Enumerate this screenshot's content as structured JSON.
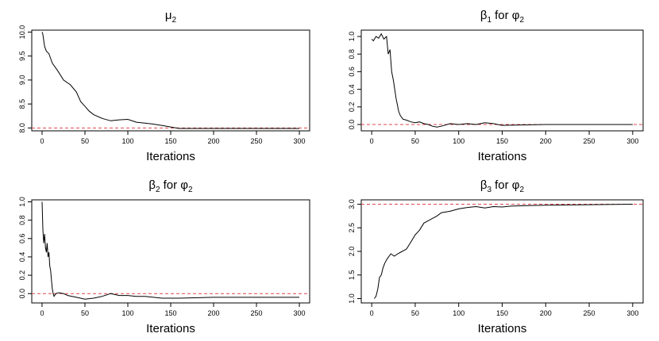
{
  "colors": {
    "trace": "#000000",
    "reference": "#e0474c",
    "axis": "#000000"
  },
  "chart_data": [
    {
      "type": "line",
      "title_main": "μ",
      "title_sub": "2",
      "title_tail": "",
      "xlabel": "Iterations",
      "xlim": [
        0,
        300
      ],
      "ylim": [
        7.98,
        10.0
      ],
      "x_ticks": [
        0,
        50,
        100,
        150,
        200,
        250,
        300
      ],
      "y_ticks": [
        8.0,
        8.5,
        9.0,
        9.5,
        10.0
      ],
      "y_tick_labels": [
        "8.0",
        "8.5",
        "9.0",
        "9.5",
        "10.0"
      ],
      "reference_line": 8.0,
      "series": [
        {
          "x": [
            0,
            1,
            3,
            5,
            8,
            12,
            18,
            25,
            33,
            40,
            45,
            50,
            55,
            60,
            70,
            80,
            90,
            100,
            110,
            120,
            130,
            140,
            150,
            160,
            180,
            200,
            250,
            300
          ],
          "y": [
            10.0,
            9.95,
            9.7,
            9.6,
            9.55,
            9.35,
            9.2,
            9.0,
            8.9,
            8.75,
            8.55,
            8.45,
            8.35,
            8.28,
            8.2,
            8.15,
            8.17,
            8.18,
            8.12,
            8.1,
            8.08,
            8.05,
            8.02,
            7.99,
            7.99,
            7.99,
            7.99,
            7.99
          ]
        }
      ]
    },
    {
      "type": "line",
      "title_main": "β",
      "title_sub": "1",
      "title_tail": "for φ",
      "title_tail_sub": "2",
      "xlabel": "Iterations",
      "xlim": [
        0,
        300
      ],
      "ylim": [
        -0.05,
        1.05
      ],
      "x_ticks": [
        0,
        50,
        100,
        150,
        200,
        250,
        300
      ],
      "y_ticks": [
        0.0,
        0.2,
        0.4,
        0.6,
        0.8,
        1.0
      ],
      "y_tick_labels": [
        "0.0",
        "0.2",
        "0.4",
        "0.6",
        "0.8",
        "1.0"
      ],
      "reference_line": 0.0,
      "series": [
        {
          "x": [
            0,
            2,
            5,
            8,
            11,
            14,
            17,
            19,
            21,
            23,
            25,
            28,
            31,
            33,
            36,
            40,
            45,
            50,
            55,
            60,
            65,
            70,
            75,
            80,
            90,
            100,
            110,
            120,
            130,
            140,
            150,
            200,
            250,
            300
          ],
          "y": [
            0.97,
            0.95,
            1.0,
            0.98,
            1.03,
            0.97,
            1.0,
            0.8,
            0.85,
            0.6,
            0.5,
            0.3,
            0.15,
            0.1,
            0.06,
            0.05,
            0.03,
            0.02,
            0.03,
            0.01,
            0.0,
            -0.02,
            -0.03,
            -0.02,
            0.01,
            0.0,
            0.01,
            0.0,
            0.02,
            0.01,
            -0.01,
            0.0,
            0.0,
            0.0
          ]
        }
      ]
    },
    {
      "type": "line",
      "title_main": "β",
      "title_sub": "2",
      "title_tail": "for φ",
      "title_tail_sub": "2",
      "xlabel": "Iterations",
      "xlim": [
        0,
        300
      ],
      "ylim": [
        -0.08,
        1.0
      ],
      "x_ticks": [
        0,
        50,
        100,
        150,
        200,
        250,
        300
      ],
      "y_ticks": [
        0.0,
        0.2,
        0.4,
        0.6,
        0.8,
        1.0
      ],
      "y_tick_labels": [
        "0.0",
        "0.2",
        "0.4",
        "0.6",
        "0.8",
        "1.0"
      ],
      "reference_line": 0.0,
      "series": [
        {
          "x": [
            0,
            1,
            2,
            3,
            4,
            5,
            6,
            7,
            8,
            9,
            10,
            11,
            12,
            13,
            14,
            16,
            20,
            25,
            30,
            40,
            50,
            60,
            70,
            80,
            90,
            100,
            110,
            120,
            130,
            140,
            150,
            160,
            200,
            250,
            300
          ],
          "y": [
            1.0,
            0.7,
            0.55,
            0.65,
            0.5,
            0.45,
            0.55,
            0.4,
            0.45,
            0.3,
            0.25,
            0.15,
            0.05,
            0.0,
            -0.03,
            0.0,
            0.01,
            0.0,
            -0.02,
            -0.04,
            -0.06,
            -0.05,
            -0.03,
            0.0,
            -0.02,
            -0.02,
            -0.03,
            -0.03,
            -0.04,
            -0.05,
            -0.05,
            -0.05,
            -0.04,
            -0.04,
            -0.04
          ]
        }
      ]
    },
    {
      "type": "line",
      "title_main": "β",
      "title_sub": "3",
      "title_tail": "for φ",
      "title_tail_sub": "2",
      "xlabel": "Iterations",
      "xlim": [
        0,
        300
      ],
      "ylim": [
        0.95,
        3.05
      ],
      "x_ticks": [
        0,
        50,
        100,
        150,
        200,
        250,
        300
      ],
      "y_ticks": [
        1.0,
        1.5,
        2.0,
        2.5,
        3.0
      ],
      "y_tick_labels": [
        "1.0",
        "1.5",
        "2.0",
        "2.5",
        "3.0"
      ],
      "reference_line": 3.0,
      "series": [
        {
          "x": [
            3,
            5,
            7,
            9,
            11,
            13,
            15,
            18,
            22,
            26,
            30,
            35,
            40,
            45,
            50,
            55,
            60,
            65,
            70,
            75,
            80,
            90,
            100,
            110,
            120,
            130,
            140,
            150,
            160,
            180,
            200,
            250,
            300
          ],
          "y": [
            1.0,
            1.05,
            1.2,
            1.45,
            1.5,
            1.65,
            1.75,
            1.85,
            1.95,
            1.9,
            1.95,
            2.0,
            2.05,
            2.2,
            2.35,
            2.45,
            2.6,
            2.65,
            2.7,
            2.75,
            2.82,
            2.85,
            2.9,
            2.93,
            2.95,
            2.92,
            2.95,
            2.94,
            2.96,
            2.97,
            2.98,
            2.99,
            3.0
          ]
        }
      ]
    }
  ]
}
